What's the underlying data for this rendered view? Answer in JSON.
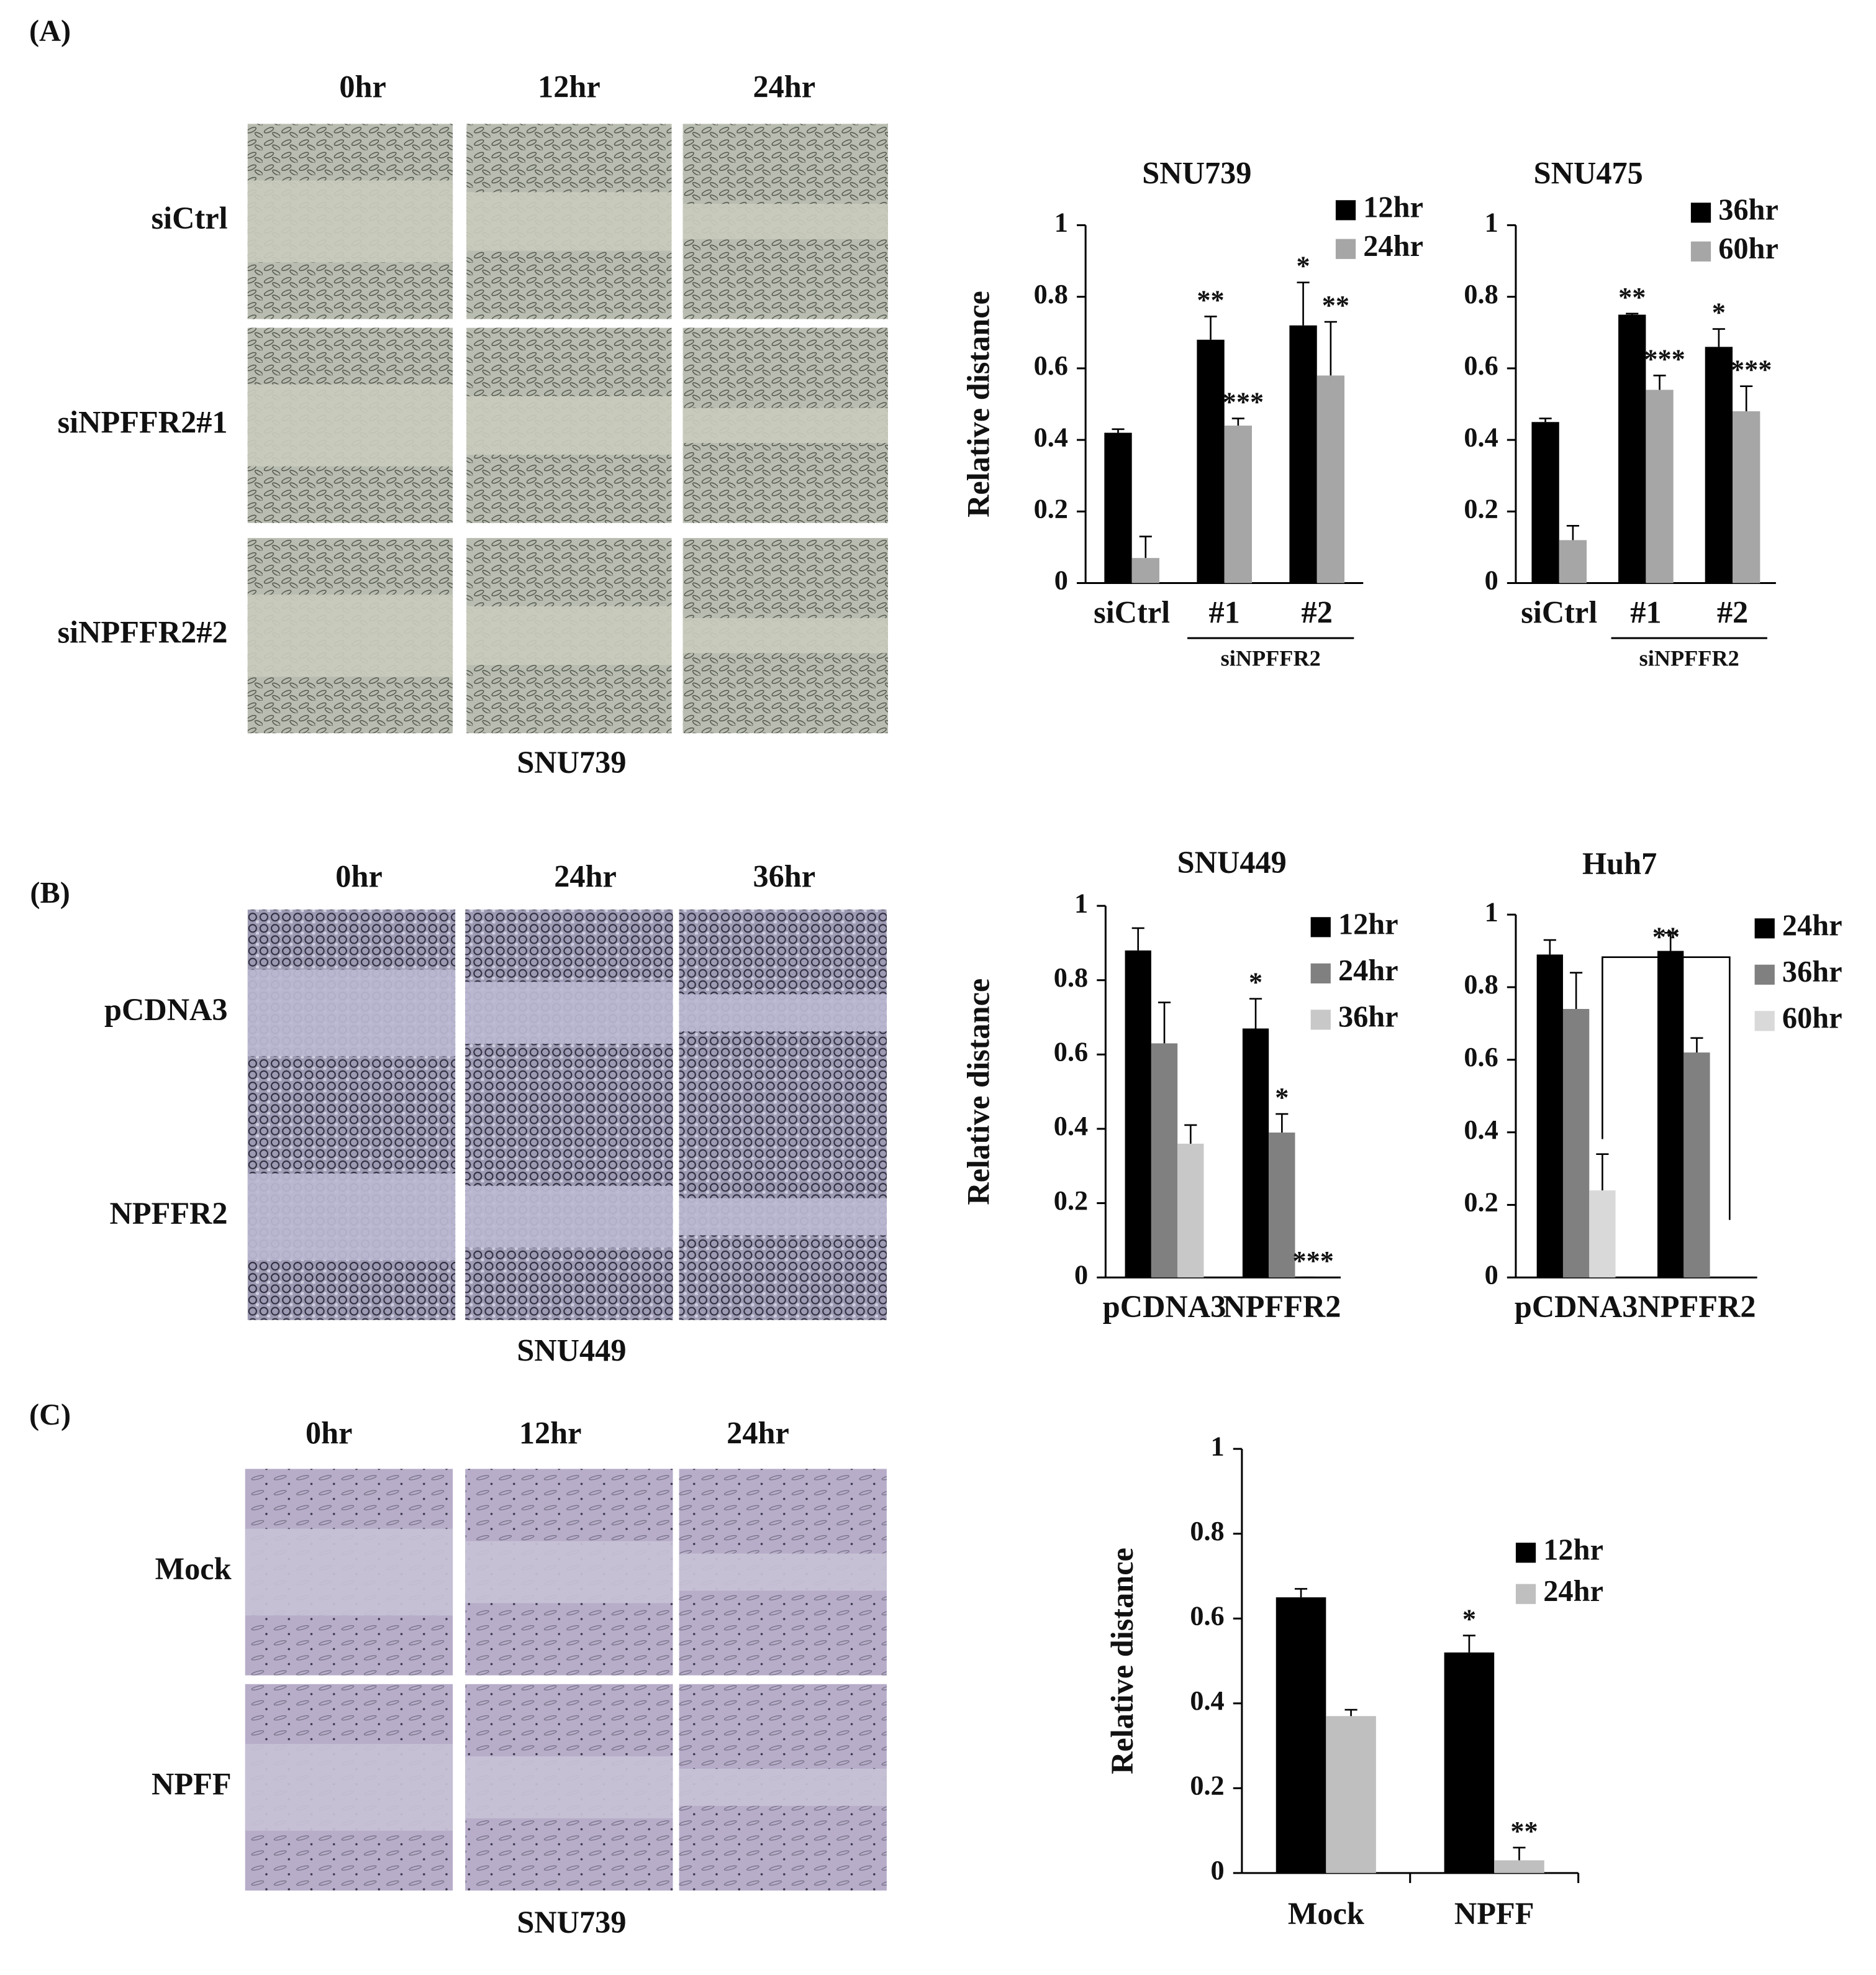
{
  "panels": [
    {
      "label": "(A)",
      "columns": [
        "0hr",
        "12hr",
        "24hr"
      ],
      "rows": [
        "siCtrl",
        "siNPFFR2#1",
        "siNPFFR2#2"
      ],
      "caption": "SNU739"
    },
    {
      "label": "(B)",
      "columns": [
        "0hr",
        "24hr",
        "36hr"
      ],
      "rows": [
        "pCDNA3",
        "NPFFR2"
      ],
      "caption": "SNU449"
    },
    {
      "label": "(C)",
      "columns": [
        "0hr",
        "12hr",
        "24hr"
      ],
      "rows": [
        "Mock",
        "NPFF"
      ],
      "caption": "SNU739"
    }
  ],
  "chart_data": [
    {
      "type": "bar",
      "title": "SNU739",
      "y_label": "Relative distance",
      "categories": [
        "siCtrl",
        "#1",
        "#2"
      ],
      "group_label": "siNPFFR2",
      "series": [
        {
          "name": "12hr",
          "color": "#000000",
          "values": [
            0.42,
            0.68,
            0.72
          ],
          "errors": [
            0.01,
            0.065,
            0.12
          ],
          "stars": [
            null,
            "**",
            "*"
          ]
        },
        {
          "name": "24hr",
          "color": "#a6a6a6",
          "values": [
            0.07,
            0.44,
            0.58
          ],
          "errors": [
            0.06,
            0.02,
            0.15
          ],
          "stars": [
            null,
            "***",
            "**"
          ]
        }
      ],
      "ylim": [
        0,
        1
      ],
      "yticks": [
        0,
        0.2,
        0.4,
        0.6,
        0.8,
        1
      ]
    },
    {
      "type": "bar",
      "title": "SNU475",
      "categories": [
        "siCtrl",
        "#1",
        "#2"
      ],
      "group_label": "siNPFFR2",
      "series": [
        {
          "name": "36hr",
          "color": "#000000",
          "values": [
            0.45,
            0.75,
            0.66
          ],
          "errors": [
            0.01,
            0.003,
            0.05
          ],
          "stars": [
            null,
            "**",
            "*"
          ]
        },
        {
          "name": "60hr",
          "color": "#a6a6a6",
          "values": [
            0.12,
            0.54,
            0.48
          ],
          "errors": [
            0.04,
            0.04,
            0.07
          ],
          "stars": [
            null,
            "***",
            "***"
          ]
        }
      ],
      "ylim": [
        0,
        1
      ],
      "yticks": [
        0,
        0.2,
        0.4,
        0.6,
        0.8,
        1
      ]
    },
    {
      "type": "bar",
      "title": "SNU449",
      "y_label": "Relative distance",
      "categories": [
        "pCDNA3",
        "NPFFR2"
      ],
      "series": [
        {
          "name": "12hr",
          "color": "#000000",
          "values": [
            0.88,
            0.67
          ],
          "errors": [
            0.06,
            0.08
          ],
          "stars": [
            null,
            "*"
          ]
        },
        {
          "name": "24hr",
          "color": "#808080",
          "values": [
            0.63,
            0.39
          ],
          "errors": [
            0.11,
            0.05
          ],
          "stars": [
            null,
            "*"
          ]
        },
        {
          "name": "36hr",
          "color": "#c8c8c8",
          "values": [
            0.36,
            0
          ],
          "errors": [
            0.05,
            0
          ],
          "stars": [
            null,
            "***"
          ]
        }
      ],
      "ylim": [
        0,
        1
      ],
      "yticks": [
        0,
        0.2,
        0.4,
        0.6,
        0.8,
        1
      ]
    },
    {
      "type": "bar",
      "title": "Huh7",
      "categories": [
        "pCDNA3",
        "NPFFR2"
      ],
      "bracket_label": "**",
      "series": [
        {
          "name": "24hr",
          "color": "#000000",
          "values": [
            0.89,
            0.9
          ],
          "errors": [
            0.04,
            0.05
          ],
          "stars": [
            null,
            null
          ]
        },
        {
          "name": "36hr",
          "color": "#808080",
          "values": [
            0.74,
            0.62
          ],
          "errors": [
            0.1,
            0.04
          ],
          "stars": [
            null,
            null
          ]
        },
        {
          "name": "60hr",
          "color": "#d9d9d9",
          "values": [
            0.24,
            null
          ],
          "errors": [
            0.1,
            null
          ],
          "stars": [
            null,
            null
          ]
        }
      ],
      "ylim": [
        0,
        1
      ],
      "yticks": [
        0,
        0.2,
        0.4,
        0.6,
        0.8,
        1
      ]
    },
    {
      "type": "bar",
      "y_label": "Relative distance",
      "categories": [
        "Mock",
        "NPFF"
      ],
      "series": [
        {
          "name": "12hr",
          "color": "#000000",
          "values": [
            0.65,
            0.52
          ],
          "errors": [
            0.02,
            0.04
          ],
          "stars": [
            null,
            "*"
          ]
        },
        {
          "name": "24hr",
          "color": "#bfbfbf",
          "values": [
            0.37,
            0.03
          ],
          "errors": [
            0.015,
            0.03
          ],
          "stars": [
            null,
            "**"
          ]
        }
      ],
      "ylim": [
        0,
        1
      ],
      "yticks": [
        0,
        0.2,
        0.4,
        0.6,
        0.8,
        1
      ]
    }
  ]
}
